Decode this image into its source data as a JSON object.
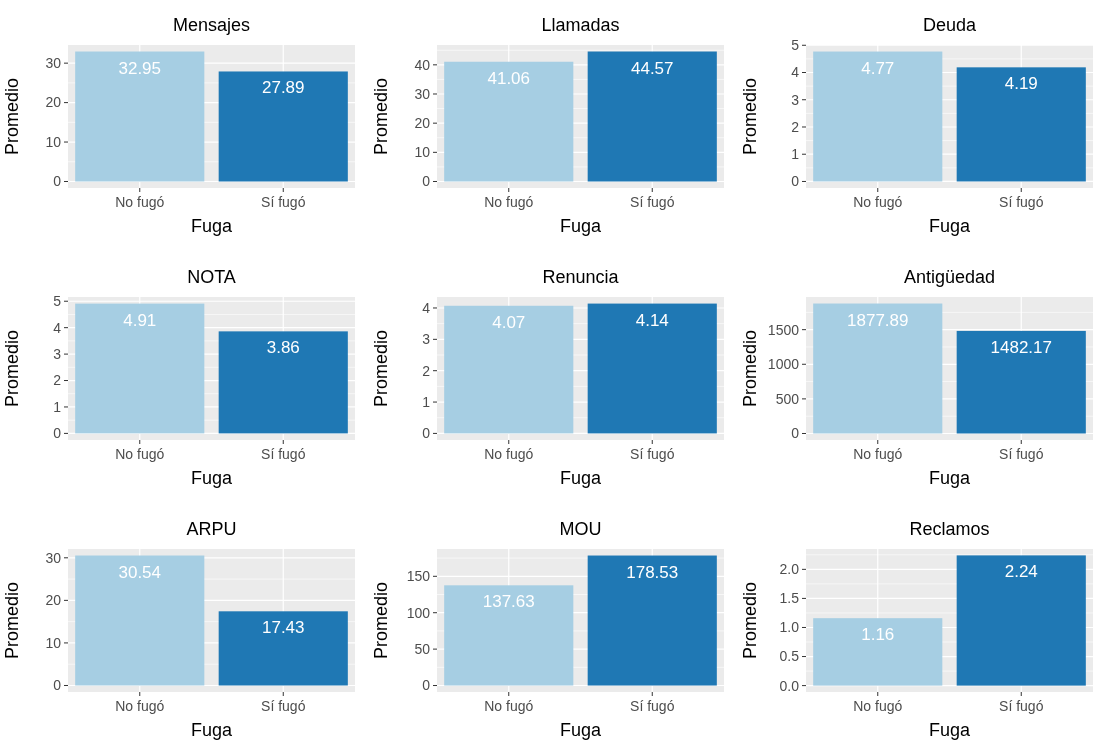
{
  "chart_data": [
    {
      "type": "bar",
      "title": "Mensajes",
      "xlabel": "Fuga",
      "ylabel": "Promedio",
      "categories": [
        "No fugó",
        "Sí fugó"
      ],
      "values": [
        32.95,
        27.89
      ],
      "colors": [
        "#a6cee3",
        "#1f78b4"
      ],
      "ylim": [
        -1.65,
        34.6
      ],
      "yticks": [
        0,
        10,
        20,
        30
      ],
      "grid": true,
      "data_labels": true
    },
    {
      "type": "bar",
      "title": "Llamadas",
      "xlabel": "Fuga",
      "ylabel": "Promedio",
      "categories": [
        "No fugó",
        "Sí fugó"
      ],
      "values": [
        41.06,
        44.57
      ],
      "colors": [
        "#a6cee3",
        "#1f78b4"
      ],
      "ylim": [
        -2.23,
        46.8
      ],
      "yticks": [
        0,
        10,
        20,
        30,
        40
      ],
      "grid": true,
      "data_labels": true
    },
    {
      "type": "bar",
      "title": "Deuda",
      "xlabel": "Fuga",
      "ylabel": "Promedio",
      "categories": [
        "No fugó",
        "Sí fugó"
      ],
      "values": [
        4.77,
        4.19
      ],
      "colors": [
        "#a6cee3",
        "#1f78b4"
      ],
      "ylim": [
        -0.24,
        5.01
      ],
      "yticks": [
        0,
        1,
        2,
        3,
        4,
        5
      ],
      "grid": true,
      "data_labels": true
    },
    {
      "type": "bar",
      "title": "NOTA",
      "xlabel": "Fuga",
      "ylabel": "Promedio",
      "categories": [
        "No fugó",
        "Sí fugó"
      ],
      "values": [
        4.91,
        3.86
      ],
      "colors": [
        "#a6cee3",
        "#1f78b4"
      ],
      "ylim": [
        -0.25,
        5.16
      ],
      "yticks": [
        0,
        1,
        2,
        3,
        4,
        5
      ],
      "grid": true,
      "data_labels": true
    },
    {
      "type": "bar",
      "title": "Renuncia",
      "xlabel": "Fuga",
      "ylabel": "Promedio",
      "categories": [
        "No fugó",
        "Sí fugó"
      ],
      "values": [
        4.07,
        4.14
      ],
      "colors": [
        "#a6cee3",
        "#1f78b4"
      ],
      "ylim": [
        -0.21,
        4.35
      ],
      "yticks": [
        0,
        1,
        2,
        3,
        4
      ],
      "grid": true,
      "data_labels": true
    },
    {
      "type": "bar",
      "title": "Antigüedad",
      "xlabel": "Fuga",
      "ylabel": "Promedio",
      "categories": [
        "No fugó",
        "Sí fugó"
      ],
      "values": [
        1877.89,
        1482.17
      ],
      "colors": [
        "#a6cee3",
        "#1f78b4"
      ],
      "ylim": [
        -94,
        1972
      ],
      "yticks": [
        0,
        500,
        1000,
        1500
      ],
      "grid": true,
      "data_labels": true
    },
    {
      "type": "bar",
      "title": "ARPU",
      "xlabel": "Fuga",
      "ylabel": "Promedio",
      "categories": [
        "No fugó",
        "Sí fugó"
      ],
      "values": [
        30.54,
        17.43
      ],
      "colors": [
        "#a6cee3",
        "#1f78b4"
      ],
      "ylim": [
        -1.53,
        32.07
      ],
      "yticks": [
        0,
        10,
        20,
        30
      ],
      "grid": true,
      "data_labels": true
    },
    {
      "type": "bar",
      "title": "MOU",
      "xlabel": "Fuga",
      "ylabel": "Promedio",
      "categories": [
        "No fugó",
        "Sí fugó"
      ],
      "values": [
        137.63,
        178.53
      ],
      "colors": [
        "#a6cee3",
        "#1f78b4"
      ],
      "ylim": [
        -8.9,
        187.5
      ],
      "yticks": [
        0,
        50,
        100,
        150
      ],
      "grid": true,
      "data_labels": true
    },
    {
      "type": "bar",
      "title": "Reclamos",
      "xlabel": "Fuga",
      "ylabel": "Promedio",
      "categories": [
        "No fugó",
        "Sí fugó"
      ],
      "values": [
        1.16,
        2.24
      ],
      "colors": [
        "#a6cee3",
        "#1f78b4"
      ],
      "ylim": [
        -0.11,
        2.35
      ],
      "yticks": [
        {
          "value": 0,
          "label": "0.0"
        },
        {
          "value": 0.5,
          "label": "0.5"
        },
        {
          "value": 1,
          "label": "1.0"
        },
        {
          "value": 1.5,
          "label": "1.5"
        },
        {
          "value": 2,
          "label": "2.0"
        }
      ],
      "grid": true,
      "data_labels": true
    }
  ]
}
